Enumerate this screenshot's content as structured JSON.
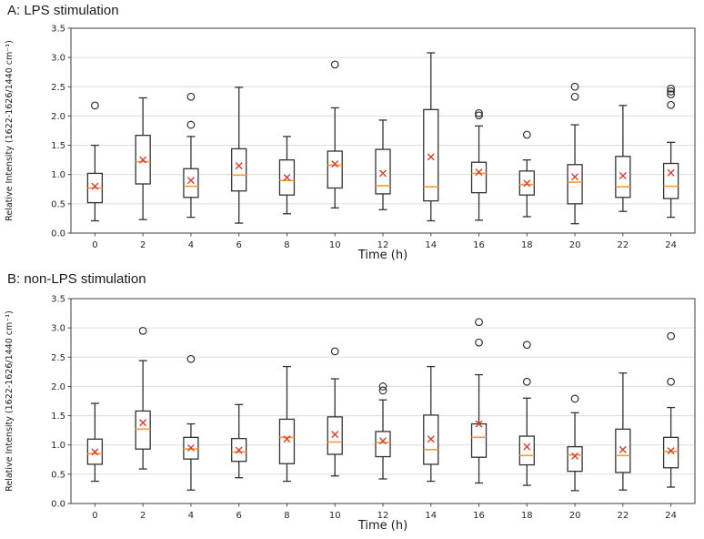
{
  "figure": {
    "panels": [
      {
        "id": "A",
        "title": "A: LPS stimulation"
      },
      {
        "id": "B",
        "title": "B: non-LPS stimulation"
      }
    ]
  },
  "chart_data": [
    {
      "type": "boxplot",
      "title": "A: LPS stimulation",
      "xlabel": "Time (h)",
      "ylabel": "Relative Intensity (1622-1626/1440 cm⁻¹)",
      "ylim": [
        0.0,
        3.5
      ],
      "ytick_step": 0.5,
      "grid": "horizontal-gridlines-on",
      "legend": "none",
      "categories": [
        0,
        2,
        4,
        6,
        8,
        10,
        12,
        14,
        16,
        18,
        20,
        22,
        24
      ],
      "colors": {
        "box": "#333333",
        "median": "#ff9933",
        "mean": "#e8392a",
        "grid": "#dcdcdc",
        "spine": "#4d4d4d",
        "outlier": "#333333"
      },
      "boxes": [
        {
          "time": 0,
          "whislo": 0.21,
          "q1": 0.52,
          "med": 0.77,
          "q3": 1.02,
          "whishi": 1.5,
          "mean": 0.8,
          "outliers": [
            2.18
          ]
        },
        {
          "time": 2,
          "whislo": 0.23,
          "q1": 0.84,
          "med": 1.22,
          "q3": 1.67,
          "whishi": 2.31,
          "mean": 1.25,
          "outliers": []
        },
        {
          "time": 4,
          "whislo": 0.27,
          "q1": 0.61,
          "med": 0.8,
          "q3": 1.1,
          "whishi": 1.65,
          "mean": 0.9,
          "outliers": [
            1.85,
            2.33
          ]
        },
        {
          "time": 6,
          "whislo": 0.17,
          "q1": 0.72,
          "med": 0.99,
          "q3": 1.44,
          "whishi": 2.49,
          "mean": 1.15,
          "outliers": []
        },
        {
          "time": 8,
          "whislo": 0.33,
          "q1": 0.65,
          "med": 0.9,
          "q3": 1.25,
          "whishi": 1.65,
          "mean": 0.95,
          "outliers": []
        },
        {
          "time": 10,
          "whislo": 0.43,
          "q1": 0.77,
          "med": 1.16,
          "q3": 1.4,
          "whishi": 2.14,
          "mean": 1.18,
          "outliers": [
            2.88
          ]
        },
        {
          "time": 12,
          "whislo": 0.4,
          "q1": 0.67,
          "med": 0.81,
          "q3": 1.43,
          "whishi": 1.93,
          "mean": 1.02,
          "outliers": []
        },
        {
          "time": 14,
          "whislo": 0.21,
          "q1": 0.55,
          "med": 0.79,
          "q3": 2.11,
          "whishi": 3.08,
          "mean": 1.3,
          "outliers": []
        },
        {
          "time": 16,
          "whislo": 0.22,
          "q1": 0.69,
          "med": 1.02,
          "q3": 1.21,
          "whishi": 1.83,
          "mean": 1.04,
          "outliers": [
            2.01,
            2.05
          ]
        },
        {
          "time": 18,
          "whislo": 0.28,
          "q1": 0.65,
          "med": 0.83,
          "q3": 1.06,
          "whishi": 1.25,
          "mean": 0.85,
          "outliers": [
            1.68
          ]
        },
        {
          "time": 20,
          "whislo": 0.16,
          "q1": 0.5,
          "med": 0.87,
          "q3": 1.17,
          "whishi": 1.85,
          "mean": 0.96,
          "outliers": [
            2.33,
            2.5
          ]
        },
        {
          "time": 22,
          "whislo": 0.37,
          "q1": 0.61,
          "med": 0.79,
          "q3": 1.31,
          "whishi": 2.18,
          "mean": 0.98,
          "outliers": []
        },
        {
          "time": 24,
          "whislo": 0.27,
          "q1": 0.59,
          "med": 0.8,
          "q3": 1.19,
          "whishi": 1.55,
          "mean": 1.03,
          "outliers": [
            2.19,
            2.37,
            2.42,
            2.47
          ]
        }
      ]
    },
    {
      "type": "boxplot",
      "title": "B: non-LPS stimulation",
      "xlabel": "Time (h)",
      "ylabel": "Relative Intensity (1622-1626/1440 cm⁻¹)",
      "ylim": [
        0.0,
        3.5
      ],
      "ytick_step": 0.5,
      "grid": "horizontal-gridlines-on",
      "legend": "none",
      "categories": [
        0,
        2,
        4,
        6,
        8,
        10,
        12,
        14,
        16,
        18,
        20,
        22,
        24
      ],
      "colors": {
        "box": "#333333",
        "median": "#ff9933",
        "mean": "#e8392a",
        "grid": "#dcdcdc",
        "spine": "#4d4d4d",
        "outlier": "#333333"
      },
      "boxes": [
        {
          "time": 0,
          "whislo": 0.38,
          "q1": 0.67,
          "med": 0.85,
          "q3": 1.1,
          "whishi": 1.71,
          "mean": 0.88,
          "outliers": []
        },
        {
          "time": 2,
          "whislo": 0.59,
          "q1": 0.93,
          "med": 1.27,
          "q3": 1.58,
          "whishi": 2.44,
          "mean": 1.38,
          "outliers": [
            2.95
          ]
        },
        {
          "time": 4,
          "whislo": 0.23,
          "q1": 0.76,
          "med": 0.93,
          "q3": 1.13,
          "whishi": 1.36,
          "mean": 0.95,
          "outliers": [
            2.47
          ]
        },
        {
          "time": 6,
          "whislo": 0.44,
          "q1": 0.72,
          "med": 0.88,
          "q3": 1.11,
          "whishi": 1.69,
          "mean": 0.91,
          "outliers": []
        },
        {
          "time": 8,
          "whislo": 0.38,
          "q1": 0.68,
          "med": 1.13,
          "q3": 1.44,
          "whishi": 2.34,
          "mean": 1.1,
          "outliers": []
        },
        {
          "time": 10,
          "whislo": 0.47,
          "q1": 0.84,
          "med": 1.05,
          "q3": 1.48,
          "whishi": 2.13,
          "mean": 1.18,
          "outliers": [
            2.6
          ]
        },
        {
          "time": 12,
          "whislo": 0.42,
          "q1": 0.8,
          "med": 1.04,
          "q3": 1.23,
          "whishi": 1.77,
          "mean": 1.07,
          "outliers": [
            1.93,
            2.0
          ]
        },
        {
          "time": 14,
          "whislo": 0.38,
          "q1": 0.67,
          "med": 0.92,
          "q3": 1.51,
          "whishi": 2.34,
          "mean": 1.1,
          "outliers": []
        },
        {
          "time": 16,
          "whislo": 0.35,
          "q1": 0.79,
          "med": 1.13,
          "q3": 1.36,
          "whishi": 2.2,
          "mean": 1.36,
          "outliers": [
            2.75,
            3.1
          ]
        },
        {
          "time": 18,
          "whislo": 0.31,
          "q1": 0.66,
          "med": 0.82,
          "q3": 1.15,
          "whishi": 1.8,
          "mean": 0.97,
          "outliers": [
            2.08,
            2.71
          ]
        },
        {
          "time": 20,
          "whislo": 0.22,
          "q1": 0.55,
          "med": 0.83,
          "q3": 0.97,
          "whishi": 1.55,
          "mean": 0.81,
          "outliers": [
            1.79
          ]
        },
        {
          "time": 22,
          "whislo": 0.23,
          "q1": 0.53,
          "med": 0.82,
          "q3": 1.27,
          "whishi": 2.23,
          "mean": 0.92,
          "outliers": []
        },
        {
          "time": 24,
          "whislo": 0.28,
          "q1": 0.61,
          "med": 0.89,
          "q3": 1.13,
          "whishi": 1.64,
          "mean": 0.9,
          "outliers": [
            2.08,
            2.86
          ]
        }
      ]
    }
  ]
}
